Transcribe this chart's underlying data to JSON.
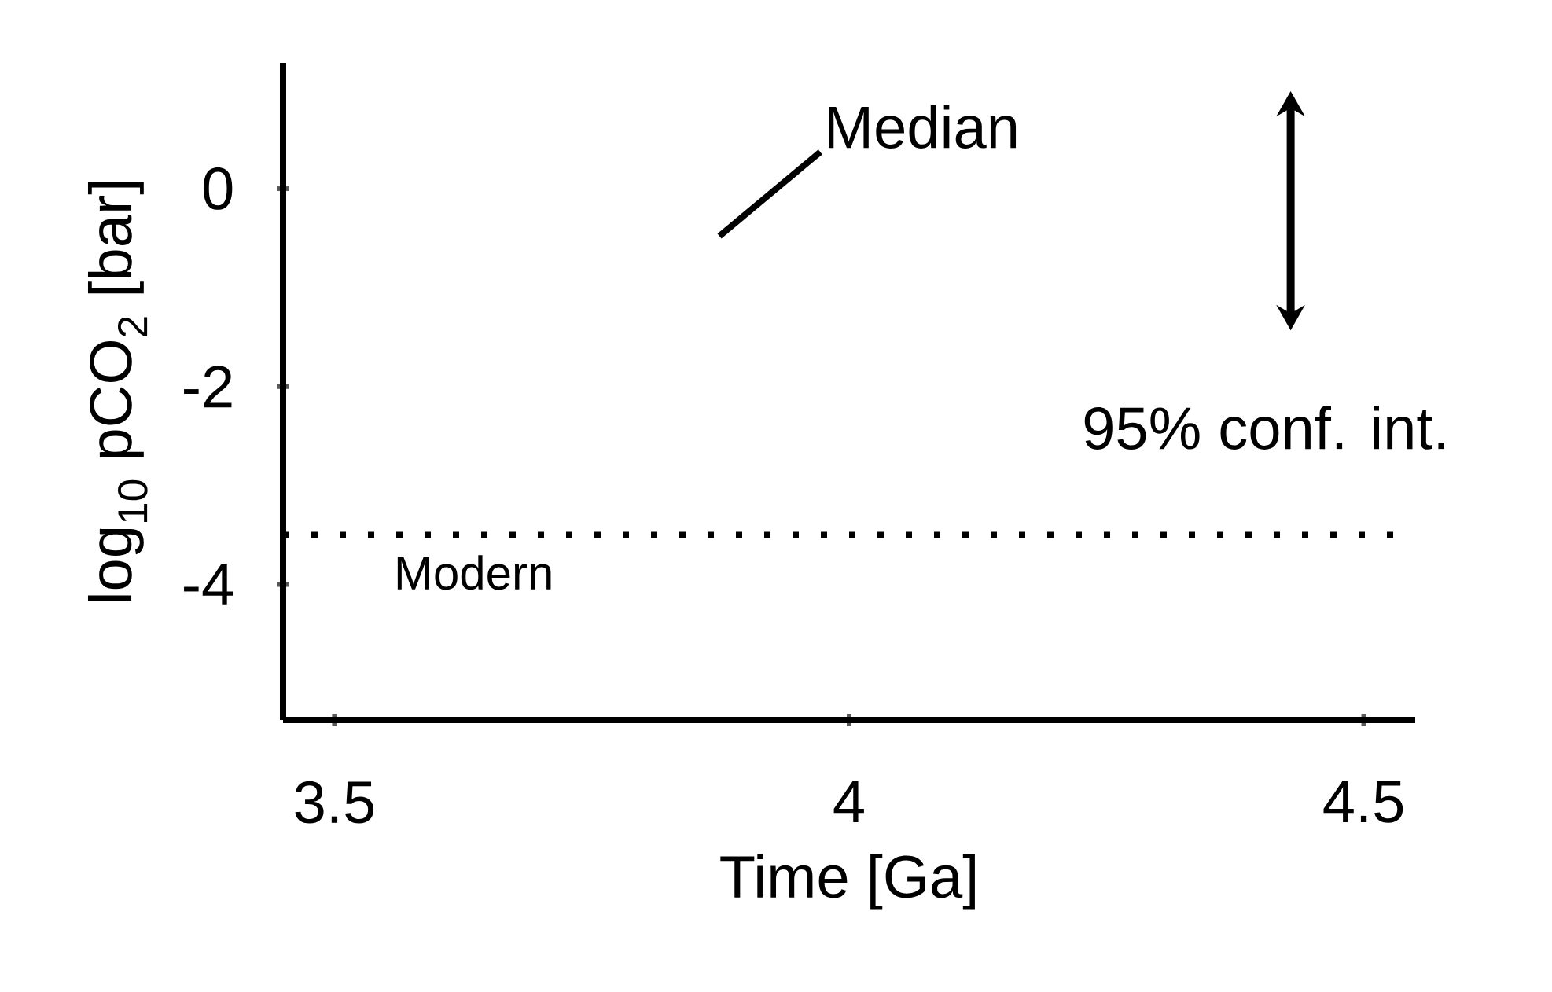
{
  "chart_data": {
    "type": "line",
    "xlabel": "Time [Ga]",
    "ylabel": "log$_{10}$ pCO$_{2}$ [bar]",
    "xlim": [
      3.45,
      4.55
    ],
    "ylim": [
      -5.37,
      1.27
    ],
    "xticks": [
      3.5,
      4,
      4.5
    ],
    "yticks": [
      -4,
      -2,
      0
    ],
    "series": [
      {
        "name": "Median",
        "color": "#000000",
        "x": [
          3.874,
          3.972
        ],
        "values": [
          -0.48,
          0.37
        ]
      }
    ],
    "ref_lines": [
      {
        "axis": "y",
        "value": -3.5,
        "label": "Modern",
        "color": "#000000",
        "line_style": "dotted"
      }
    ],
    "annotations": [
      "95% conf. int."
    ],
    "grid": false,
    "marker": "none",
    "line_style": "solid"
  }
}
